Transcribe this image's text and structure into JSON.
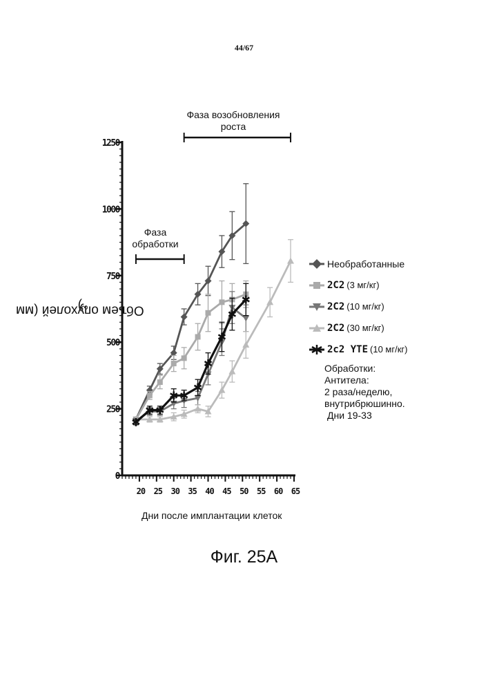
{
  "page_number": "44/67",
  "figure_caption": "Фиг. 25А",
  "phases": {
    "treatment": [
      "Фаза",
      "обработки"
    ],
    "regrowth": [
      "Фаза возобновления",
      "роста"
    ]
  },
  "notes": [
    "Обработки:",
    "Антитела:",
    "2 раза/неделю,",
    "внутрибрюшинно.",
    "Дни 19-33"
  ],
  "chart_data": {
    "type": "line",
    "title": "",
    "xlabel": "Дни после имплантации клеток",
    "ylabel_main": "Объем опухолей (мм",
    "ylabel_sup": "3",
    "ylabel_end": ")",
    "xlim": [
      15,
      65
    ],
    "ylim": [
      0,
      1250
    ],
    "x_ticks": [
      20,
      25,
      30,
      35,
      40,
      45,
      50,
      55,
      60,
      65
    ],
    "y_ticks": [
      0,
      250,
      500,
      750,
      1000,
      1250
    ],
    "phase_ranges": {
      "treatment": [
        19,
        33
      ],
      "regrowth": [
        33,
        64
      ]
    },
    "series": [
      {
        "name": "Необработанные",
        "dose": "",
        "color": "#555555",
        "marker": "diamond",
        "x": [
          19,
          23,
          26,
          30,
          33,
          37,
          40,
          44,
          47,
          51
        ],
        "y": [
          210,
          320,
          400,
          460,
          595,
          680,
          730,
          840,
          900,
          945
        ],
        "err": [
          10,
          15,
          20,
          25,
          30,
          40,
          55,
          60,
          90,
          150
        ]
      },
      {
        "name": "2C2",
        "dose": "(3 мг/кг)",
        "color": "#aaaaaa",
        "marker": "square",
        "x": [
          19,
          23,
          26,
          30,
          33,
          37,
          40,
          44,
          47,
          51
        ],
        "y": [
          210,
          300,
          350,
          420,
          440,
          520,
          610,
          650,
          660,
          680
        ],
        "err": [
          10,
          15,
          25,
          30,
          40,
          50,
          70,
          80,
          60,
          50
        ]
      },
      {
        "name": "2C2",
        "dose": "(10 мг/кг)",
        "color": "#777777",
        "marker": "triangle-down",
        "x": [
          19,
          23,
          26,
          30,
          33,
          37,
          40,
          44,
          47,
          51
        ],
        "y": [
          205,
          240,
          240,
          270,
          280,
          290,
          380,
          500,
          630,
          590
        ],
        "err": [
          10,
          15,
          15,
          20,
          25,
          25,
          40,
          50,
          60,
          50
        ]
      },
      {
        "name": "2C2",
        "dose": "(30 мг/кг)",
        "color": "#bbbbbb",
        "marker": "triangle-up",
        "x": [
          19,
          23,
          26,
          30,
          33,
          37,
          40,
          44,
          47,
          51,
          58,
          64
        ],
        "y": [
          210,
          210,
          210,
          220,
          230,
          250,
          240,
          320,
          390,
          490,
          650,
          805
        ],
        "err": [
          10,
          10,
          10,
          15,
          15,
          15,
          20,
          30,
          40,
          50,
          55,
          80
        ]
      },
      {
        "name": "2c2 YTE",
        "dose": "(10 мг/кг)",
        "color": "#111111",
        "marker": "star",
        "x": [
          19,
          23,
          26,
          30,
          33,
          37,
          40,
          44,
          47,
          51
        ],
        "y": [
          200,
          245,
          245,
          300,
          300,
          330,
          420,
          520,
          605,
          660
        ],
        "err": [
          10,
          15,
          15,
          25,
          20,
          30,
          40,
          55,
          60,
          60
        ]
      }
    ]
  }
}
